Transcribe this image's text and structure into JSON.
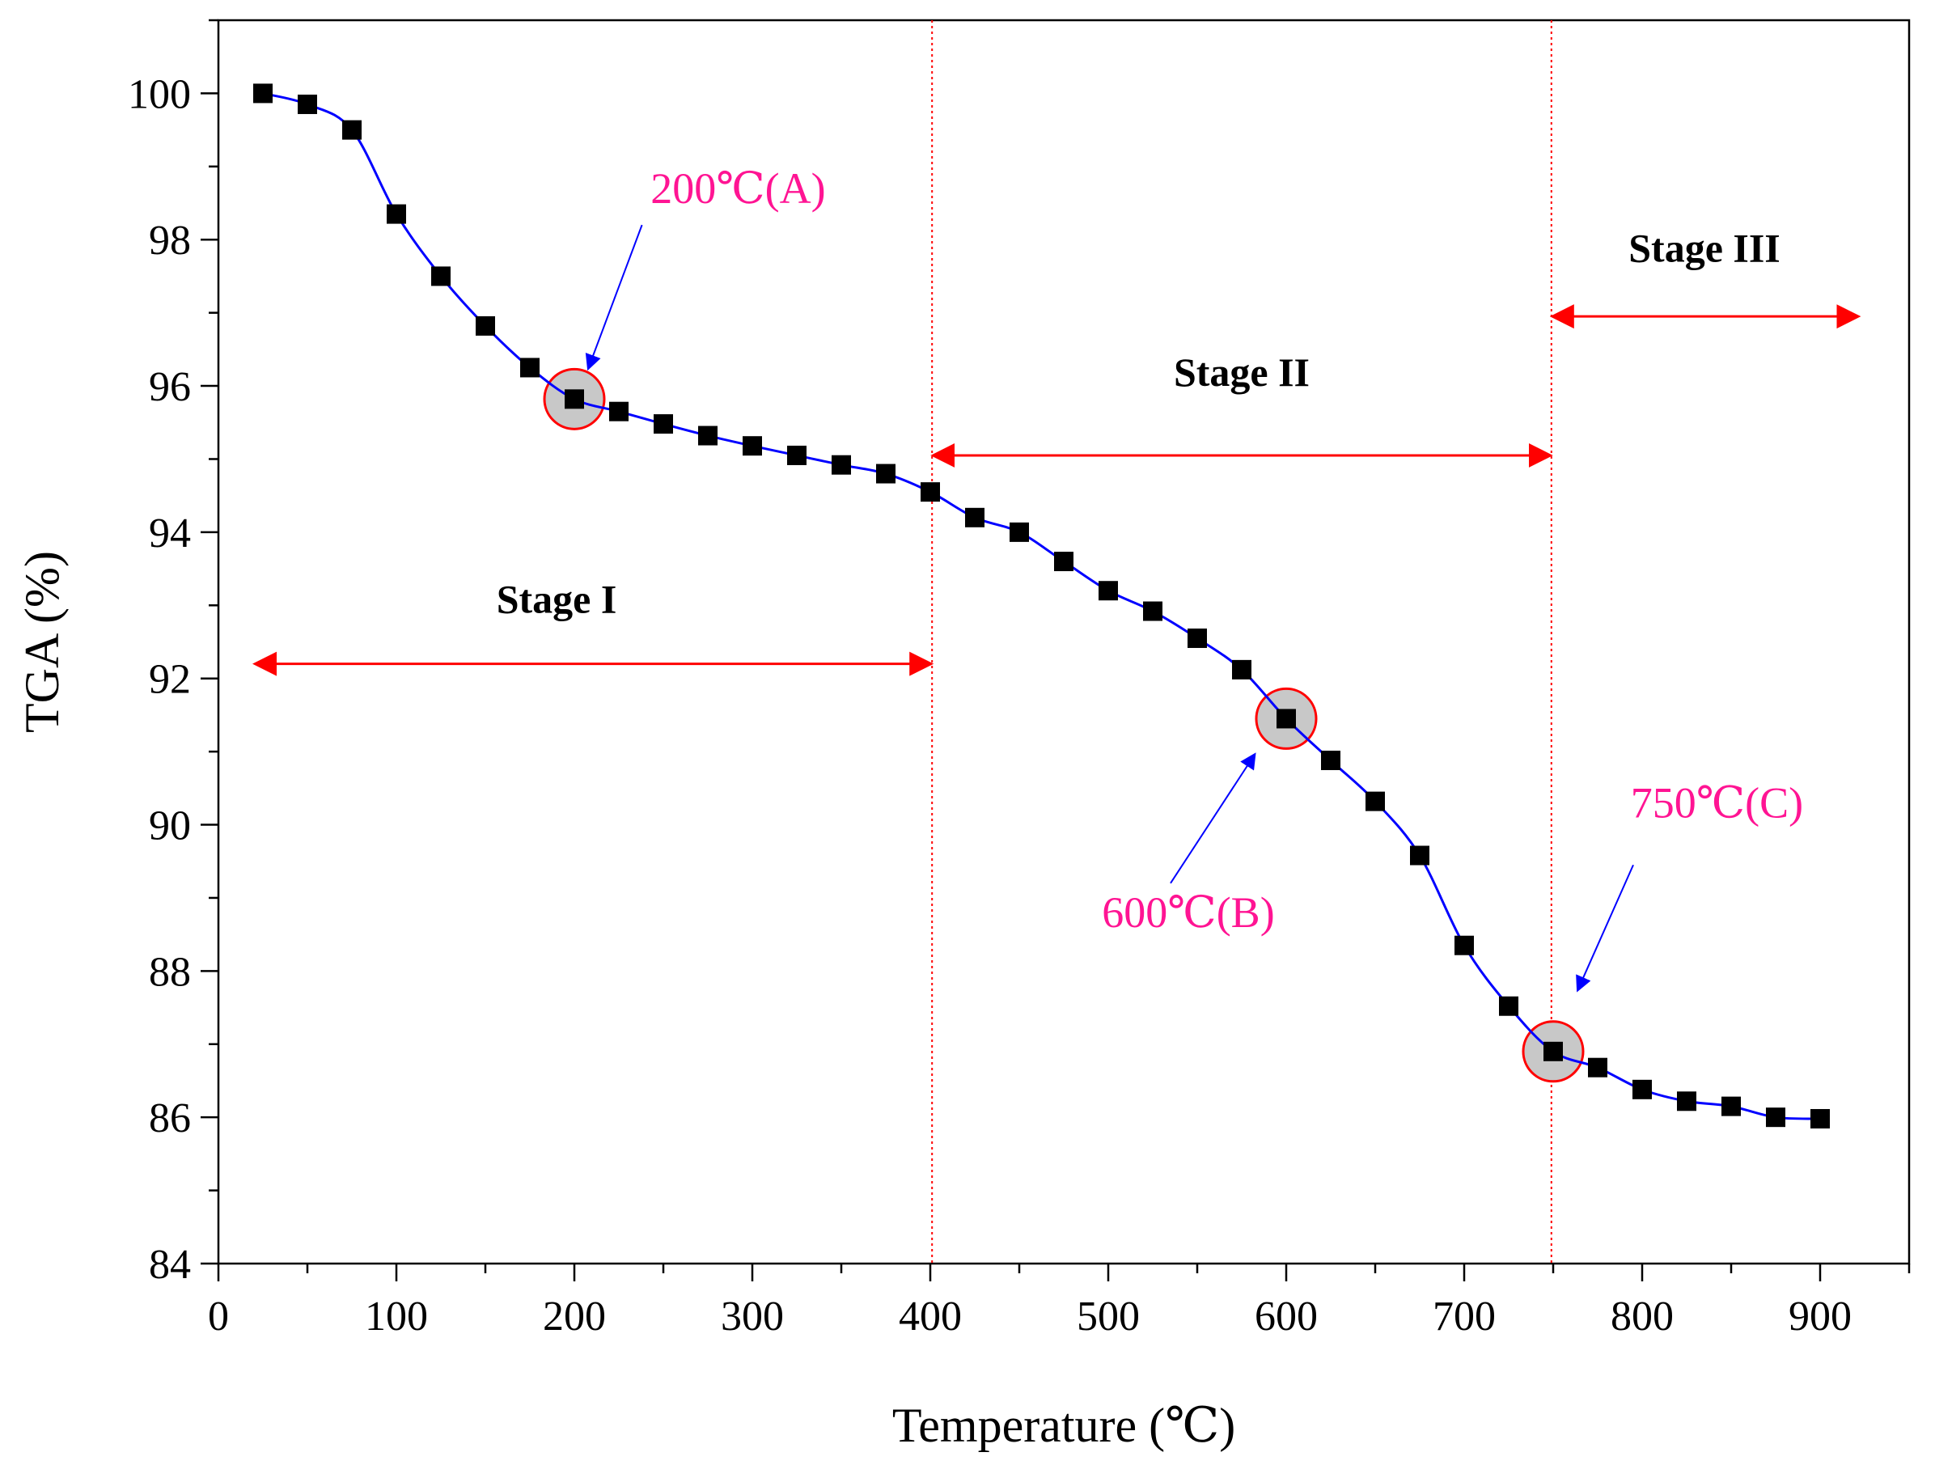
{
  "colors": {
    "curve": "#0000ff",
    "marker": "#000000",
    "stage_arrow": "#ff0000",
    "boundary": "#ff0000",
    "callout_text": "#ff1493",
    "callout_arrow": "#0000ff",
    "highlight_fill": "#c8c8c8",
    "highlight_stroke": "#ff0000"
  },
  "chart_data": {
    "type": "line",
    "title": "",
    "xlabel": "Temperature (℃)",
    "ylabel": "TGA (%)",
    "xlim": [
      0,
      950
    ],
    "ylim": [
      84,
      101
    ],
    "x_ticks": [
      0,
      100,
      200,
      300,
      400,
      500,
      600,
      700,
      800,
      900
    ],
    "x_tick_labels": [
      "0",
      "100",
      "200",
      "300",
      "400",
      "500",
      "600",
      "700",
      "800",
      "900"
    ],
    "x_minor_step": 50,
    "y_ticks": [
      84,
      86,
      88,
      90,
      92,
      94,
      96,
      98,
      100
    ],
    "y_tick_labels": [
      "84",
      "86",
      "88",
      "90",
      "92",
      "94",
      "96",
      "98",
      "100"
    ],
    "y_minor_step": 1,
    "grid": false,
    "series": [
      {
        "name": "TGA",
        "marker": "square",
        "x": [
          25,
          50,
          75,
          100,
          125,
          150,
          175,
          200,
          225,
          250,
          275,
          300,
          325,
          350,
          375,
          400,
          425,
          450,
          475,
          500,
          525,
          550,
          575,
          600,
          625,
          650,
          675,
          700,
          725,
          750,
          775,
          800,
          825,
          850,
          875,
          900
        ],
        "values": [
          100.0,
          99.85,
          99.5,
          98.35,
          97.5,
          96.82,
          96.25,
          95.82,
          95.65,
          95.48,
          95.32,
          95.18,
          95.05,
          94.92,
          94.8,
          94.55,
          94.2,
          94.0,
          93.6,
          93.2,
          92.92,
          92.55,
          92.12,
          91.45,
          90.88,
          90.32,
          89.58,
          88.35,
          87.52,
          86.9,
          86.68,
          86.38,
          86.22,
          86.15,
          86.0,
          85.98
        ]
      }
    ],
    "boundaries": [
      401,
      749
    ],
    "stages": [
      {
        "label": "Stage I",
        "x_from": 20,
        "x_to": 401,
        "arrow_y": 92.2,
        "label_x": 190,
        "label_y": 92.9
      },
      {
        "label": "Stage II",
        "x_from": 401,
        "x_to": 749,
        "arrow_y": 95.05,
        "label_x": 575,
        "label_y": 96.0
      },
      {
        "label": "Stage III",
        "x_from": 749,
        "x_to": 922,
        "arrow_y": 96.95,
        "label_x": 835,
        "label_y": 97.7
      }
    ],
    "annotations": [
      {
        "label": "200℃(A)",
        "point_x": 200,
        "point_y": 95.82,
        "text_x": 292,
        "text_y": 98.5,
        "arrow_from_x": 238,
        "arrow_from_y": 98.2,
        "arrow_to_x": 208,
        "arrow_to_y": 96.25
      },
      {
        "label": "600℃(B)",
        "point_x": 600,
        "point_y": 91.45,
        "text_x": 545,
        "text_y": 88.6,
        "arrow_from_x": 535,
        "arrow_from_y": 89.2,
        "arrow_to_x": 582,
        "arrow_to_y": 90.95
      },
      {
        "label": "750℃(C)",
        "point_x": 750,
        "point_y": 86.9,
        "text_x": 842,
        "text_y": 90.1,
        "arrow_from_x": 795,
        "arrow_from_y": 89.45,
        "arrow_to_x": 764,
        "arrow_to_y": 87.75
      }
    ]
  }
}
